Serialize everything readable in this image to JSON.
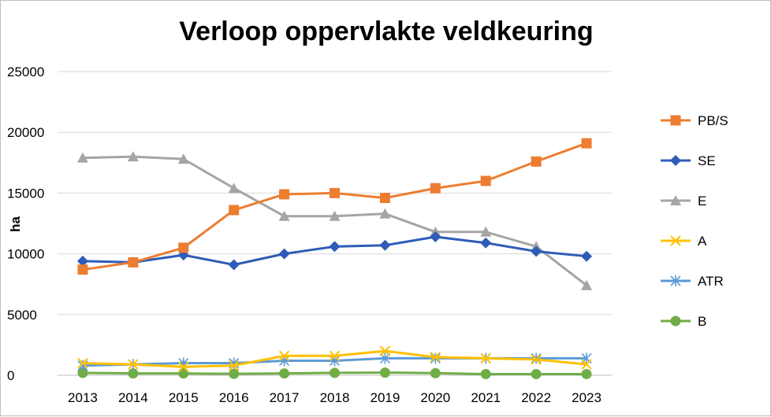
{
  "chart_data": {
    "type": "line",
    "title": "Verloop oppervlakte veldkeuring",
    "xlabel": "",
    "ylabel": "ha",
    "ylim": [
      0,
      25000
    ],
    "yticks": [
      0,
      5000,
      10000,
      15000,
      20000,
      25000
    ],
    "grid": "horizontal",
    "legend_position": "right",
    "categories": [
      "2013",
      "2014",
      "2015",
      "2016",
      "2017",
      "2018",
      "2019",
      "2020",
      "2021",
      "2022",
      "2023"
    ],
    "series": [
      {
        "name": "PB/S",
        "color": "#ED7D31",
        "marker": "square",
        "values": [
          8700,
          9300,
          10500,
          13600,
          14900,
          15000,
          14600,
          15400,
          16000,
          17600,
          19100
        ]
      },
      {
        "name": "SE",
        "color": "#2E5CB8",
        "marker": "diamond",
        "values": [
          9400,
          9300,
          9900,
          9100,
          10000,
          10600,
          10700,
          11400,
          10900,
          10200,
          9800
        ]
      },
      {
        "name": "E",
        "color": "#A5A5A5",
        "marker": "triangle",
        "values": [
          17900,
          18000,
          17800,
          15400,
          13100,
          13100,
          13300,
          11800,
          11800,
          10600,
          7400
        ]
      },
      {
        "name": "A",
        "color": "#FFC000",
        "marker": "x",
        "values": [
          1000,
          900,
          700,
          800,
          1600,
          1600,
          2000,
          1500,
          1400,
          1300,
          900
        ]
      },
      {
        "name": "ATR",
        "color": "#5B9BD5",
        "marker": "star",
        "values": [
          800,
          900,
          1000,
          1000,
          1200,
          1200,
          1400,
          1400,
          1400,
          1400,
          1400
        ]
      },
      {
        "name": "B",
        "color": "#70AD47",
        "marker": "circle",
        "values": [
          200,
          150,
          150,
          120,
          150,
          200,
          220,
          180,
          100,
          100,
          100
        ]
      }
    ]
  }
}
